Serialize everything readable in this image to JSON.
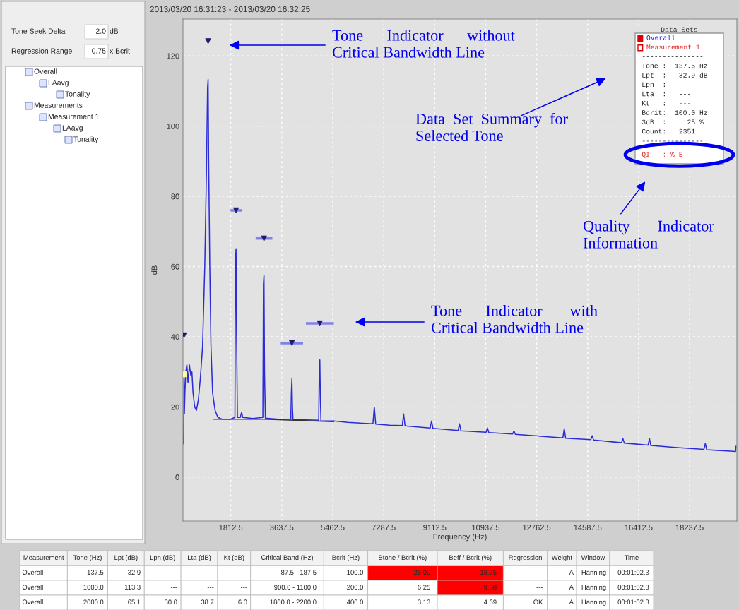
{
  "chart_data": [
    {
      "type": "line",
      "title": "2013/03/20 16:31:23 - 2013/03/20 16:32:25",
      "xlabel": "Frequency (Hz)",
      "ylabel": "dB",
      "xlim": [
        100,
        19930
      ],
      "ylim": [
        -12.5,
        130.5
      ],
      "xticks": [
        1812.5,
        3637.5,
        5462.5,
        7287.5,
        9112.5,
        10937.5,
        12762.5,
        14587.5,
        16412.5,
        18237.5
      ],
      "yticks": [
        0,
        20,
        40,
        60,
        80,
        100,
        120
      ],
      "grid": true,
      "series": [
        {
          "type": "line",
          "color": "#2b2bd9",
          "x": [
            100,
            120,
            137.5,
            150,
            170,
            200,
            240,
            280,
            330,
            380,
            420,
            460,
            520,
            580,
            650,
            720,
            800,
            880,
            940,
            980,
            1000,
            1020,
            1060,
            1100,
            1160,
            1250,
            1350,
            1500,
            1800,
            1960,
            1980,
            2000,
            2020,
            2050,
            2150,
            2200,
            2240,
            2600,
            2960,
            2980,
            3000,
            3020,
            3050,
            3500,
            3960,
            3980,
            4000,
            4020,
            4040,
            4500,
            4960,
            4980,
            5000,
            5020,
            5040,
            5500,
            6000,
            6900,
            6950,
            7000,
            7500,
            7950,
            8000,
            8050,
            8950,
            9000,
            9050,
            9950,
            10000,
            10050,
            10950,
            11000,
            11050,
            11900,
            11950,
            12000,
            13000,
            13700,
            13750,
            13800,
            14700,
            14750,
            14800,
            15800,
            15850,
            15900,
            16750,
            16800,
            16850,
            17800,
            18750,
            18800,
            18850,
            19700,
            19880,
            19900
          ],
          "values": [
            11,
            9.5,
            29,
            18,
            24,
            30,
            32,
            27,
            32,
            29,
            30,
            24,
            20,
            19,
            22,
            28,
            37,
            60,
            87,
            111,
            113.3,
            90,
            60,
            38,
            24,
            19,
            17,
            16.5,
            16.5,
            17,
            62,
            65.1,
            40,
            17,
            17,
            18.5,
            17,
            16.7,
            17,
            55,
            57.5,
            30,
            16.8,
            16.5,
            16.5,
            24,
            28,
            20,
            16.4,
            16.3,
            16.2,
            31,
            33.4,
            22,
            16,
            16,
            15.6,
            15.2,
            20,
            15.1,
            14.8,
            14.7,
            18,
            14.6,
            14,
            16,
            13.9,
            13.3,
            15.2,
            13.2,
            12.8,
            14,
            12.7,
            12.3,
            13.2,
            12.2,
            11.6,
            11.2,
            13.8,
            11.1,
            10.7,
            11.8,
            10.6,
            9.8,
            11,
            9.7,
            9.1,
            11,
            9,
            8.4,
            7.9,
            9.6,
            7.8,
            7.4,
            7.3,
            8.8
          ]
        },
        {
          "type": "line",
          "color": "#333333",
          "x": [
            1200,
            3000,
            5500
          ],
          "values": [
            16.5,
            16.5,
            15.8
          ]
        },
        {
          "type": "scatter",
          "color": "#1a1a70",
          "marker": "triangle",
          "x": [
            137.5,
            1000,
            2000,
            3000,
            4000,
            5000
          ],
          "values": [
            40.4,
            124.2,
            76,
            68,
            38.2,
            43.8
          ],
          "xerrors": [
            null,
            null,
            200,
            300,
            400,
            500
          ]
        },
        {
          "type": "scatter",
          "color": "#ffff99",
          "marker": "square",
          "x": [
            137.5
          ],
          "values": [
            29.3
          ]
        }
      ],
      "annotations": [
        "Tone      Indicator      without\nCritical Bandwidth Line",
        "Tone      Indicator       with\nCritical Bandwidth Line",
        "Data  Set  Summary  for\nSelected Tone",
        "Quality       Indicator\nInformation"
      ]
    },
    {
      "type": "other",
      "title": "Data Sets",
      "annotations": [
        "Overall",
        "Measurement 1",
        "---------------",
        "Tone :  137.5 Hz",
        "Lpt  :   32.9 dB",
        "Lpn  :   ---",
        "Lta  :   ---",
        "Kt   :   ---",
        "Bcrit:  100.0 Hz",
        "3dB  :     25 %",
        "Count:   2351",
        "---------------",
        "QI   : % E"
      ],
      "colors": [
        "#2020e0",
        "#e02020",
        "#222222",
        "#222222",
        "#222222",
        "#222222",
        "#222222",
        "#222222",
        "#222222",
        "#222222",
        "#222222",
        "#222222",
        "#e02020"
      ]
    },
    {
      "type": "other",
      "annotations": [
        "Tone Seek Delta",
        "2.0",
        "dB",
        "Regression Range",
        "0.75",
        "x Bcrit",
        "Overall",
        "LAavg",
        "Tonality",
        "Measurements",
        "Measurement 1",
        "LAavg",
        "Tonality"
      ]
    },
    {
      "type": "other",
      "categories": [
        "Measurement",
        "Tone (Hz)",
        "Lpt (dB)",
        "Lpn (dB)",
        "Lta (dB)",
        "Kt (dB)",
        "Critical Band (Hz)",
        "Bcrit (Hz)",
        "Btone / Bcrit (%)",
        "Beff / Bcrit (%)",
        "Regression",
        "Weight",
        "Window",
        "Time"
      ],
      "cell_labels": [
        [
          "Overall",
          "137.5",
          "32.9",
          "---",
          "---",
          "---",
          "87.5 - 187.5",
          "100.0",
          "25.00",
          "18.75",
          "---",
          "A",
          "Hanning",
          "00:01:02.3"
        ],
        [
          "Overall",
          "1000.0",
          "113.3",
          "---",
          "---",
          "---",
          "900.0 - 1100.0",
          "200.0",
          "6.25",
          "9.38",
          "---",
          "A",
          "Hanning",
          "00:01:02.3"
        ],
        [
          "Overall",
          "2000.0",
          "65.1",
          "30.0",
          "38.7",
          "6.0",
          "1800.0 - 2200.0",
          "400.0",
          "3.13",
          "4.69",
          "OK",
          "A",
          "Hanning",
          "00:01:02.3"
        ]
      ],
      "colors": [
        [
          null,
          null,
          null,
          null,
          null,
          null,
          null,
          null,
          "#ff0000",
          "#ff0000",
          null,
          null,
          null,
          null
        ],
        [
          null,
          null,
          null,
          null,
          null,
          null,
          null,
          null,
          null,
          "#ff0000",
          null,
          null,
          null,
          null
        ],
        [
          null,
          null,
          null,
          null,
          null,
          null,
          null,
          null,
          null,
          null,
          null,
          null,
          null,
          null
        ]
      ]
    }
  ]
}
